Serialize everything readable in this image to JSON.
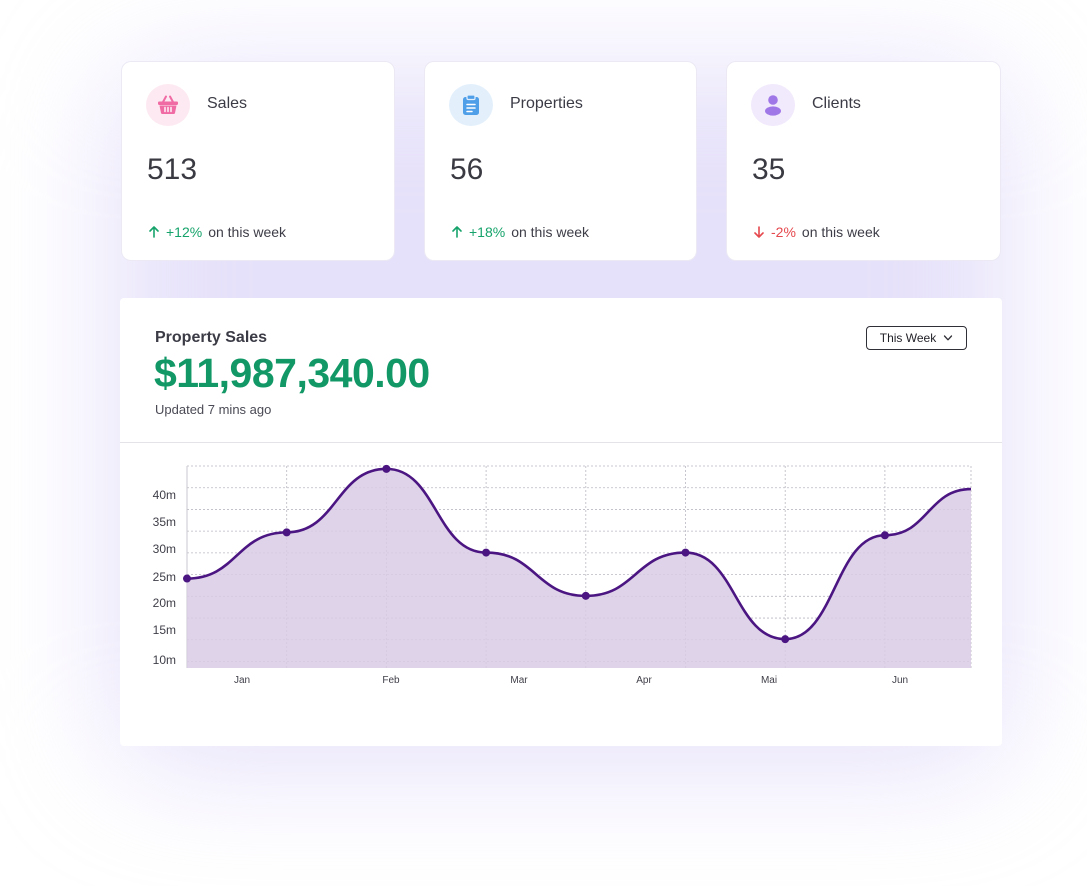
{
  "stats": [
    {
      "title": "Sales",
      "value": "513",
      "trend_pct": "+12%",
      "trend_text": "on this week",
      "direction": "up",
      "icon": "basket-icon",
      "icon_color": "#f06aa4",
      "icon_bg": "#fde9f1"
    },
    {
      "title": "Properties",
      "value": "56",
      "trend_pct": "+18%",
      "trend_text": "on this week",
      "direction": "up",
      "icon": "clipboard-icon",
      "icon_color": "#4f9ee8",
      "icon_bg": "#e3f0fc"
    },
    {
      "title": "Clients",
      "value": "35",
      "trend_pct": "-2%",
      "trend_text": "on this week",
      "direction": "down",
      "icon": "user-icon",
      "icon_color": "#a077e6",
      "icon_bg": "#f1e9fc"
    }
  ],
  "panel": {
    "title": "Property Sales",
    "amount": "$11,987,340.00",
    "updated": "Updated 7 mins ago",
    "period_label": "This Week"
  },
  "colors": {
    "accent_green": "#129867",
    "up": "#16a36b",
    "down": "#e5484d",
    "line": "#4b1582",
    "fill": "#d8cbe4"
  },
  "chart_data": {
    "type": "area",
    "ylim": [
      10,
      45
    ],
    "y_ticks": [
      {
        "value": 10,
        "label": "10m"
      },
      {
        "value": 15,
        "label": "15m"
      },
      {
        "value": 20,
        "label": "20m"
      },
      {
        "value": 25,
        "label": "25m"
      },
      {
        "value": 30,
        "label": "30m"
      },
      {
        "value": 35,
        "label": "35m"
      },
      {
        "value": 40,
        "label": "40m"
      }
    ],
    "x_labels": [
      "Jan",
      "Feb",
      "Mar",
      "Apr",
      "Mai",
      "Jun"
    ],
    "series": [
      {
        "values": [
          25.5,
          33.5,
          44.5,
          30,
          22.5,
          30,
          15,
          33,
          41
        ]
      }
    ],
    "grid": true
  }
}
